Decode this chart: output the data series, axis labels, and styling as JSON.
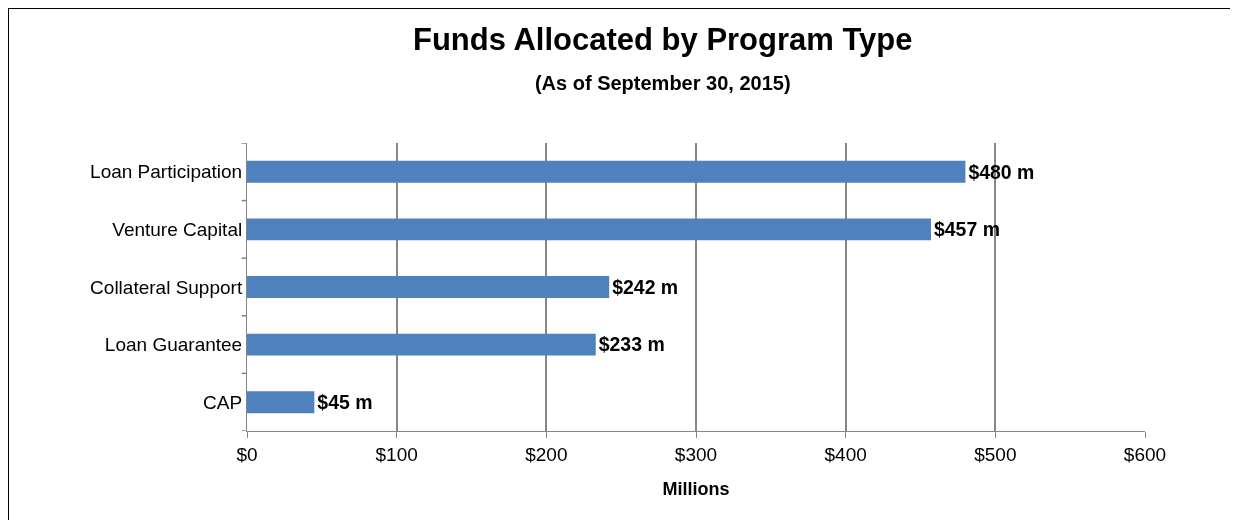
{
  "chart_data": {
    "type": "bar",
    "orientation": "horizontal",
    "title": "Funds Allocated by Program Type",
    "subtitle": "(As of September 30, 2015)",
    "xlabel": "Millions",
    "categories": [
      "Loan Participation",
      "Venture Capital",
      "Collateral Support",
      "Loan Guarantee",
      "CAP"
    ],
    "values": [
      480,
      457,
      242,
      233,
      45
    ],
    "value_labels": [
      "$480 m",
      "$457 m",
      "$242 m",
      "$233 m",
      "$45 m"
    ],
    "color": "#4f81bd",
    "xlim": [
      0,
      600
    ],
    "xticks": [
      {
        "value": 0,
        "label": "$0"
      },
      {
        "value": 100,
        "label": "$100"
      },
      {
        "value": 200,
        "label": "$200"
      },
      {
        "value": 300,
        "label": "$300"
      },
      {
        "value": 400,
        "label": "$400"
      },
      {
        "value": 500,
        "label": "$500"
      },
      {
        "value": 600,
        "label": "$600"
      }
    ],
    "grid": "x"
  }
}
